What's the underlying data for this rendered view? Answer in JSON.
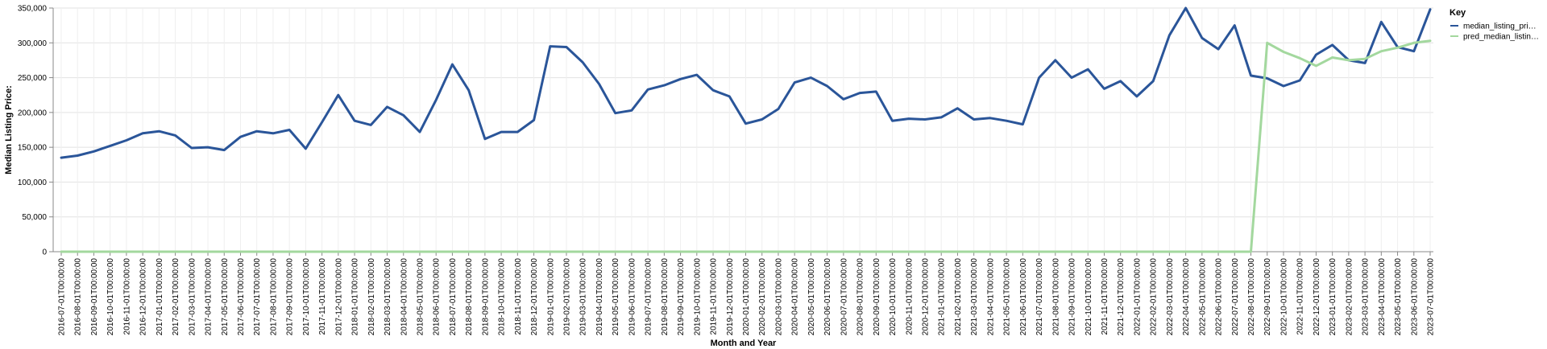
{
  "chart_data": {
    "type": "line",
    "xlabel": "Month and Year",
    "ylabel": "Median Listing Price:",
    "ylim": [
      0,
      350000
    ],
    "yticks": [
      0,
      50000,
      100000,
      150000,
      200000,
      250000,
      300000,
      350000
    ],
    "ytick_labels": [
      "0",
      "50,000",
      "100,000",
      "150,000",
      "200,000",
      "250,000",
      "300,000",
      "350,000"
    ],
    "grid": true,
    "legend": {
      "title": "Key",
      "placement": "right"
    },
    "x": [
      "2016-07-01T00:00:00",
      "2016-08-01T00:00:00",
      "2016-09-01T00:00:00",
      "2016-10-01T00:00:00",
      "2016-11-01T00:00:00",
      "2016-12-01T00:00:00",
      "2017-01-01T00:00:00",
      "2017-02-01T00:00:00",
      "2017-03-01T00:00:00",
      "2017-04-01T00:00:00",
      "2017-05-01T00:00:00",
      "2017-06-01T00:00:00",
      "2017-07-01T00:00:00",
      "2017-08-01T00:00:00",
      "2017-09-01T00:00:00",
      "2017-10-01T00:00:00",
      "2017-11-01T00:00:00",
      "2017-12-01T00:00:00",
      "2018-01-01T00:00:00",
      "2018-02-01T00:00:00",
      "2018-03-01T00:00:00",
      "2018-04-01T00:00:00",
      "2018-05-01T00:00:00",
      "2018-06-01T00:00:00",
      "2018-07-01T00:00:00",
      "2018-08-01T00:00:00",
      "2018-09-01T00:00:00",
      "2018-10-01T00:00:00",
      "2018-11-01T00:00:00",
      "2018-12-01T00:00:00",
      "2019-01-01T00:00:00",
      "2019-02-01T00:00:00",
      "2019-03-01T00:00:00",
      "2019-04-01T00:00:00",
      "2019-05-01T00:00:00",
      "2019-06-01T00:00:00",
      "2019-07-01T00:00:00",
      "2019-08-01T00:00:00",
      "2019-09-01T00:00:00",
      "2019-10-01T00:00:00",
      "2019-11-01T00:00:00",
      "2019-12-01T00:00:00",
      "2020-01-01T00:00:00",
      "2020-02-01T00:00:00",
      "2020-03-01T00:00:00",
      "2020-04-01T00:00:00",
      "2020-05-01T00:00:00",
      "2020-06-01T00:00:00",
      "2020-07-01T00:00:00",
      "2020-08-01T00:00:00",
      "2020-09-01T00:00:00",
      "2020-10-01T00:00:00",
      "2020-11-01T00:00:00",
      "2020-12-01T00:00:00",
      "2021-01-01T00:00:00",
      "2021-02-01T00:00:00",
      "2021-03-01T00:00:00",
      "2021-04-01T00:00:00",
      "2021-05-01T00:00:00",
      "2021-06-01T00:00:00",
      "2021-07-01T00:00:00",
      "2021-08-01T00:00:00",
      "2021-09-01T00:00:00",
      "2021-10-01T00:00:00",
      "2021-11-01T00:00:00",
      "2021-12-01T00:00:00",
      "2022-01-01T00:00:00",
      "2022-02-01T00:00:00",
      "2022-03-01T00:00:00",
      "2022-04-01T00:00:00",
      "2022-05-01T00:00:00",
      "2022-06-01T00:00:00",
      "2022-07-01T00:00:00",
      "2022-08-01T00:00:00",
      "2022-09-01T00:00:00",
      "2022-10-01T00:00:00",
      "2022-11-01T00:00:00",
      "2022-12-01T00:00:00",
      "2023-01-01T00:00:00",
      "2023-02-01T00:00:00",
      "2023-03-01T00:00:00",
      "2023-04-01T00:00:00",
      "2023-05-01T00:00:00",
      "2023-06-01T00:00:00",
      "2023-07-01T00:00:00"
    ],
    "series": [
      {
        "name": "median_listing_pri…",
        "color": "#2a5599",
        "values": [
          135000,
          138000,
          144000,
          152000,
          160000,
          170000,
          173000,
          167000,
          149000,
          150000,
          146000,
          165000,
          173000,
          170000,
          175000,
          148000,
          186000,
          225000,
          188000,
          182000,
          208000,
          196000,
          172000,
          218000,
          269000,
          232000,
          162000,
          172000,
          172000,
          189000,
          295000,
          294000,
          272000,
          241000,
          199000,
          203000,
          233000,
          239000,
          248000,
          254000,
          232000,
          223000,
          184000,
          190000,
          205000,
          243000,
          250000,
          238000,
          219000,
          228000,
          230000,
          188000,
          191000,
          190000,
          193000,
          206000,
          190000,
          192000,
          188000,
          183000,
          250000,
          275000,
          250000,
          262000,
          234000,
          245000,
          223000,
          245000,
          311000,
          350000,
          307000,
          291000,
          325000,
          253000,
          249000,
          238000,
          246000,
          283000,
          297000,
          275000,
          271000,
          330000,
          294000,
          288000,
          348000
        ]
      },
      {
        "name": "pred_median_listin…",
        "color": "#a3d89e",
        "values": [
          0,
          0,
          0,
          0,
          0,
          0,
          0,
          0,
          0,
          0,
          0,
          0,
          0,
          0,
          0,
          0,
          0,
          0,
          0,
          0,
          0,
          0,
          0,
          0,
          0,
          0,
          0,
          0,
          0,
          0,
          0,
          0,
          0,
          0,
          0,
          0,
          0,
          0,
          0,
          0,
          0,
          0,
          0,
          0,
          0,
          0,
          0,
          0,
          0,
          0,
          0,
          0,
          0,
          0,
          0,
          0,
          0,
          0,
          0,
          0,
          0,
          0,
          0,
          0,
          0,
          0,
          0,
          0,
          0,
          0,
          0,
          0,
          0,
          0,
          300000,
          287000,
          278000,
          267000,
          279000,
          275000,
          277000,
          288000,
          293000,
          300000,
          303000
        ]
      }
    ]
  }
}
